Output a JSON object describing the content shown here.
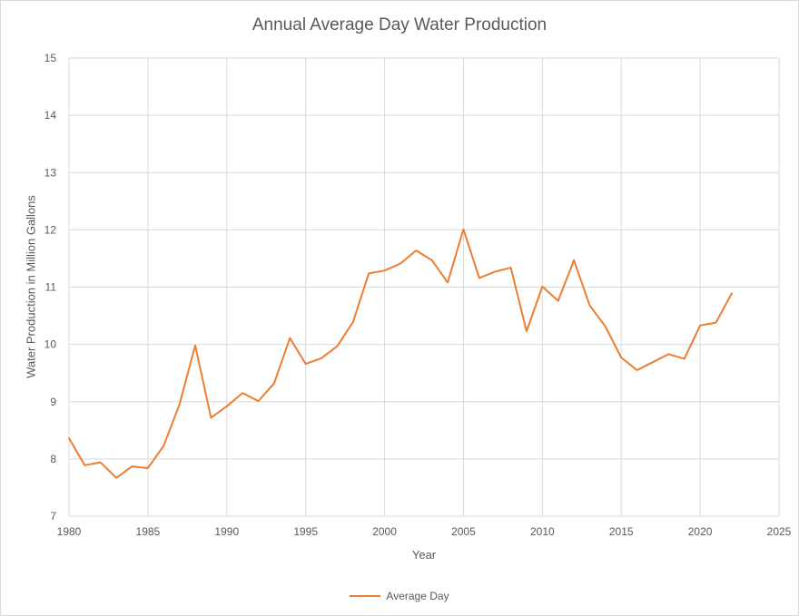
{
  "chart_data": {
    "type": "line",
    "title": "Annual Average Day Water Production",
    "xlabel": "Year",
    "ylabel": "Water Production in Million Gallons",
    "xlim": [
      1980,
      2025
    ],
    "ylim": [
      7,
      15
    ],
    "xticks": [
      1980,
      1985,
      1990,
      1995,
      2000,
      2005,
      2010,
      2015,
      2020,
      2025
    ],
    "yticks": [
      7,
      8,
      9,
      10,
      11,
      12,
      13,
      14,
      15
    ],
    "grid": true,
    "legend_position": "bottom",
    "series": [
      {
        "name": "Average Day",
        "color": "#ed7d31",
        "x": [
          1980,
          1981,
          1982,
          1983,
          1984,
          1985,
          1986,
          1987,
          1988,
          1989,
          1990,
          1991,
          1992,
          1993,
          1994,
          1995,
          1996,
          1997,
          1998,
          1999,
          2000,
          2001,
          2002,
          2003,
          2004,
          2005,
          2006,
          2007,
          2008,
          2009,
          2010,
          2011,
          2012,
          2013,
          2014,
          2015,
          2016,
          2017,
          2018,
          2019,
          2020,
          2021,
          2022
        ],
        "values": [
          8.36,
          7.89,
          7.94,
          7.67,
          7.87,
          7.84,
          8.23,
          8.95,
          9.98,
          8.72,
          8.92,
          9.15,
          9.01,
          9.32,
          10.11,
          9.66,
          9.76,
          9.97,
          10.39,
          11.24,
          11.29,
          11.41,
          11.64,
          11.47,
          11.08,
          12.01,
          11.16,
          11.27,
          11.34,
          10.23,
          11.01,
          10.76,
          11.47,
          10.68,
          10.31,
          9.77,
          9.55,
          9.69,
          9.83,
          9.75,
          10.33,
          10.38,
          10.89
        ]
      }
    ]
  }
}
